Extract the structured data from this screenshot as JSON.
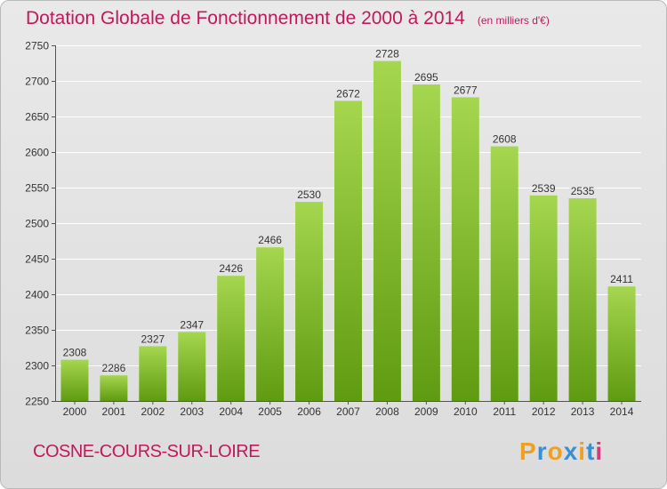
{
  "header": {
    "title": "Dotation Globale de Fonctionnement de 2000 à 2014",
    "unit_note": "(en milliers d'€)"
  },
  "footer": {
    "commune": "COSNE-COURS-SUR-LOIRE",
    "logo_text": "Proxiti"
  },
  "colors": {
    "title": "#c2185b",
    "bar_top": "#a5d64f",
    "bar_bottom": "#5f9b12",
    "grid": "#ffffff",
    "axis_text": "#333333",
    "logo": [
      "#f0a020",
      "#3a8fd0",
      "#f0a020",
      "#3a8fd0",
      "#f0a020",
      "#3a8fd0",
      "#d23b7a"
    ]
  },
  "chart_data": {
    "type": "bar",
    "title": "Dotation Globale de Fonctionnement de 2000 à 2014",
    "subtitle": "(en milliers d'€)",
    "xlabel": "",
    "ylabel": "",
    "categories": [
      "2000",
      "2001",
      "2002",
      "2003",
      "2004",
      "2005",
      "2006",
      "2007",
      "2008",
      "2009",
      "2010",
      "2011",
      "2012",
      "2013",
      "2014"
    ],
    "values": [
      2308,
      2286,
      2327,
      2347,
      2426,
      2466,
      2530,
      2672,
      2728,
      2695,
      2677,
      2608,
      2539,
      2535,
      2411
    ],
    "ylim": [
      2250,
      2750
    ],
    "yticks": [
      2250,
      2300,
      2350,
      2400,
      2450,
      2500,
      2550,
      2600,
      2650,
      2700,
      2750
    ],
    "grid": true,
    "data_labels": true,
    "legend": "none"
  }
}
